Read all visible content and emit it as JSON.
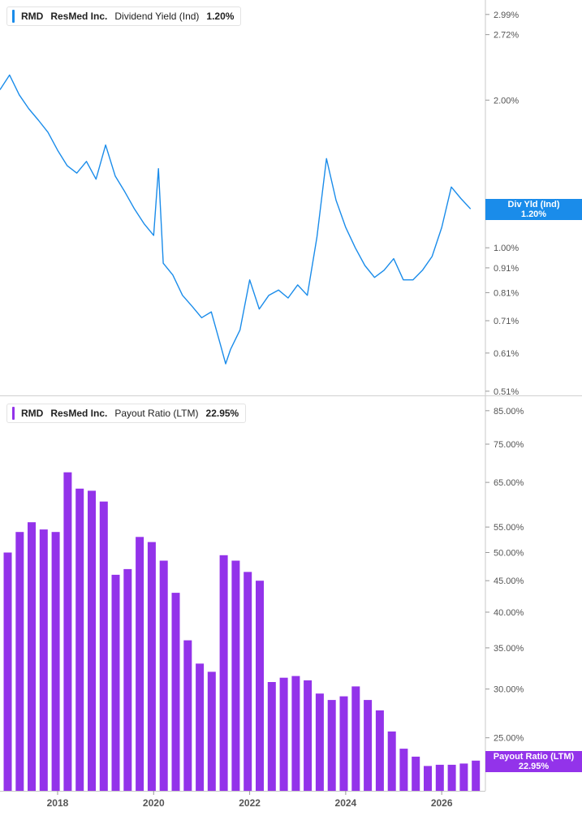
{
  "chart_data": [
    {
      "type": "line",
      "ticker": "RMD",
      "company": "ResMed Inc.",
      "metric": "Dividend Yield (Ind)",
      "current_value": "1.20%",
      "badge": [
        "Div Yld (Ind)",
        "1.20%"
      ],
      "color": "#1a8cea",
      "y_scale": "log",
      "ylim": [
        0.5,
        3.2
      ],
      "y_ticks": [
        2.99,
        2.72,
        2.0,
        1.2,
        1.0,
        0.91,
        0.81,
        0.71,
        0.61,
        0.51
      ],
      "y_tick_labels": [
        "2.99%",
        "2.72%",
        "2.00%",
        "1.20%",
        "1.00%",
        "0.91%",
        "0.81%",
        "0.71%",
        "0.61%",
        "0.51%"
      ],
      "x": [
        2016.8,
        2017.0,
        2017.2,
        2017.4,
        2017.6,
        2017.8,
        2018.0,
        2018.2,
        2018.4,
        2018.6,
        2018.8,
        2019.0,
        2019.2,
        2019.4,
        2019.6,
        2019.8,
        2020.0,
        2020.1,
        2020.2,
        2020.4,
        2020.6,
        2020.8,
        2021.0,
        2021.2,
        2021.4,
        2021.5,
        2021.6,
        2021.8,
        2022.0,
        2022.2,
        2022.4,
        2022.6,
        2022.8,
        2023.0,
        2023.2,
        2023.4,
        2023.6,
        2023.8,
        2024.0,
        2024.2,
        2024.4,
        2024.6,
        2024.8,
        2025.0,
        2025.2,
        2025.4,
        2025.6,
        2025.8,
        2026.0,
        2026.2,
        2026.4,
        2026.6
      ],
      "y": [
        2.1,
        2.25,
        2.05,
        1.92,
        1.82,
        1.72,
        1.58,
        1.47,
        1.42,
        1.5,
        1.38,
        1.62,
        1.4,
        1.3,
        1.2,
        1.12,
        1.06,
        1.45,
        0.93,
        0.88,
        0.8,
        0.76,
        0.72,
        0.74,
        0.63,
        0.58,
        0.62,
        0.68,
        0.86,
        0.75,
        0.8,
        0.82,
        0.79,
        0.84,
        0.8,
        1.05,
        1.52,
        1.25,
        1.1,
        1.0,
        0.92,
        0.87,
        0.9,
        0.95,
        0.86,
        0.86,
        0.9,
        0.96,
        1.1,
        1.33,
        1.26,
        1.2
      ]
    },
    {
      "type": "bar",
      "ticker": "RMD",
      "company": "ResMed Inc.",
      "metric": "Payout Ratio (LTM)",
      "current_value": "22.95%",
      "badge": [
        "Payout Ratio (LTM)",
        "22.95%"
      ],
      "color": "#9333ea",
      "y_scale": "log",
      "ylim": [
        20.5,
        90
      ],
      "y_ticks": [
        85,
        75,
        65,
        55,
        50,
        45,
        40,
        35,
        30,
        25,
        22.95
      ],
      "y_tick_labels": [
        "85.00%",
        "75.00%",
        "65.00%",
        "55.00%",
        "50.00%",
        "45.00%",
        "40.00%",
        "35.00%",
        "30.00%",
        "25.00%",
        "22.95%"
      ],
      "x": [
        2016.96,
        2017.21,
        2017.46,
        2017.71,
        2017.96,
        2018.21,
        2018.46,
        2018.71,
        2018.96,
        2019.21,
        2019.46,
        2019.71,
        2019.96,
        2020.21,
        2020.46,
        2020.71,
        2020.96,
        2021.21,
        2021.46,
        2021.71,
        2021.96,
        2022.21,
        2022.46,
        2022.71,
        2022.96,
        2023.21,
        2023.46,
        2023.71,
        2023.96,
        2024.21,
        2024.46,
        2024.71,
        2024.96,
        2025.21,
        2025.46,
        2025.71,
        2025.96,
        2026.21,
        2026.46,
        2026.71
      ],
      "values": [
        50.0,
        54.0,
        56.0,
        54.5,
        54.0,
        67.5,
        63.5,
        63.0,
        60.5,
        46.0,
        47.0,
        53.0,
        52.0,
        48.5,
        43.0,
        36.0,
        33.0,
        32.0,
        49.5,
        48.5,
        46.5,
        45.0,
        30.8,
        31.3,
        31.5,
        31.0,
        29.5,
        28.8,
        29.2,
        30.3,
        28.8,
        27.7,
        25.6,
        24.0,
        23.3,
        22.5,
        22.6,
        22.6,
        22.7,
        22.95
      ]
    }
  ],
  "x_axis": {
    "ticks": [
      2018,
      2020,
      2022,
      2024,
      2026
    ],
    "labels": [
      "2018",
      "2020",
      "2022",
      "2024",
      "2026"
    ]
  }
}
